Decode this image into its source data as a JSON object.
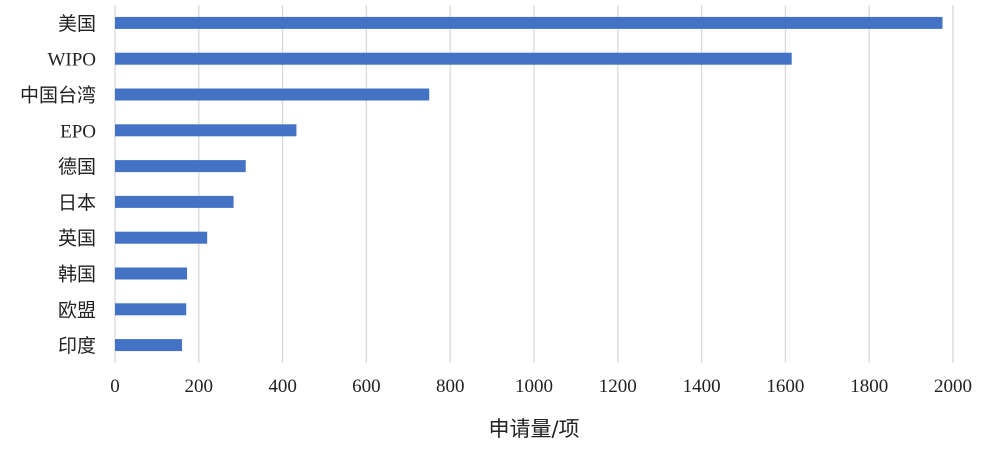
{
  "chart_data": {
    "type": "bar",
    "orientation": "horizontal",
    "categories": [
      "美国",
      "WIPO",
      "中国台湾",
      "EPO",
      "德国",
      "日本",
      "英国",
      "韩国",
      "欧盟",
      "印度"
    ],
    "values": [
      1975,
      1615,
      750,
      433,
      312,
      283,
      220,
      172,
      170,
      160
    ],
    "xlabel": "申请量/项",
    "ylabel": "",
    "title": "",
    "xlim": [
      0,
      2000
    ],
    "xticks": [
      0,
      200,
      400,
      600,
      800,
      1000,
      1200,
      1400,
      1600,
      1800,
      2000
    ],
    "grid": true,
    "legend": "none",
    "bar_color": "#4472C4",
    "grid_color": "#D9D9D9"
  }
}
